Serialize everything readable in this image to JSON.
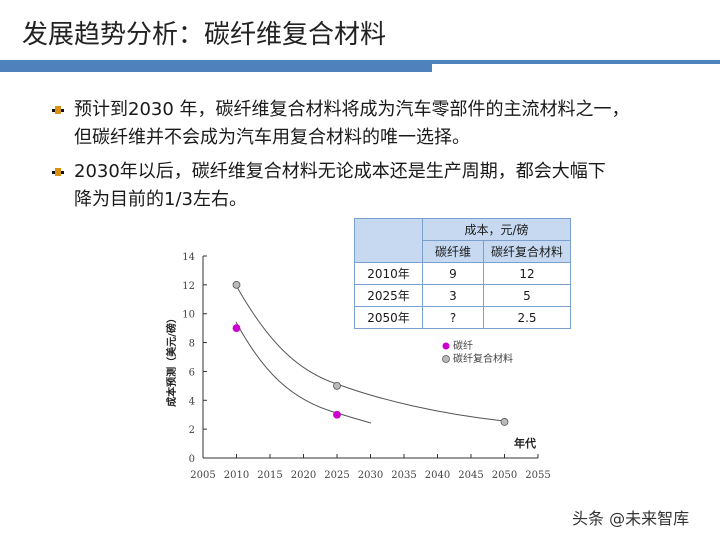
{
  "slide": {
    "title": "发展趋势分析：碳纤维复合材料",
    "bullets": [
      {
        "lines": [
          "预计到2030 年，碳纤维复合材料将成为汽车零部件的主流材料之一，",
          "但碳纤维并不会成为汽车用复合材料的唯一选择。"
        ]
      },
      {
        "lines": [
          "2030年以后，碳纤维复合材料无论成本还是生产周期，都会大幅下",
          "降为目前的1/3左右。"
        ]
      }
    ],
    "watermark": "头条 @未来智库"
  },
  "table": {
    "group_header": "成本，元/磅",
    "columns": [
      "碳纤维",
      "碳纤复合材料"
    ],
    "rows": [
      {
        "year": "2010年",
        "cf": "9",
        "cfc": "12"
      },
      {
        "year": "2025年",
        "cf": "3",
        "cfc": "5"
      },
      {
        "year": "2050年",
        "cf": "?",
        "cfc": "2.5"
      }
    ]
  },
  "colors": {
    "accent": "#4f81bd",
    "table_header": "#c6d9f1",
    "series_cf": "#cc00cc",
    "series_cfc": "#a6a6a6",
    "bullet": "#d9920f"
  },
  "chart_data": {
    "type": "scatter",
    "title": "",
    "xlabel": "年代",
    "ylabel": "成本预测（美元/磅）",
    "xlim": [
      2005,
      2055
    ],
    "ylim": [
      0,
      14
    ],
    "xticks": [
      2005,
      2010,
      2015,
      2020,
      2025,
      2030,
      2035,
      2040,
      2045,
      2050,
      2055
    ],
    "yticks": [
      0,
      2,
      4,
      6,
      8,
      10,
      12,
      14
    ],
    "grid": false,
    "legend_position": "upper right",
    "series": [
      {
        "name": "碳纤",
        "color": "#cc00cc",
        "points": [
          {
            "x": 2010,
            "y": 9
          },
          {
            "x": 2025,
            "y": 3
          }
        ],
        "trend_to": 2030
      },
      {
        "name": "碳纤复合材料",
        "color": "#a6a6a6",
        "points": [
          {
            "x": 2010,
            "y": 12
          },
          {
            "x": 2025,
            "y": 5
          },
          {
            "x": 2050,
            "y": 2.5
          }
        ]
      }
    ]
  }
}
